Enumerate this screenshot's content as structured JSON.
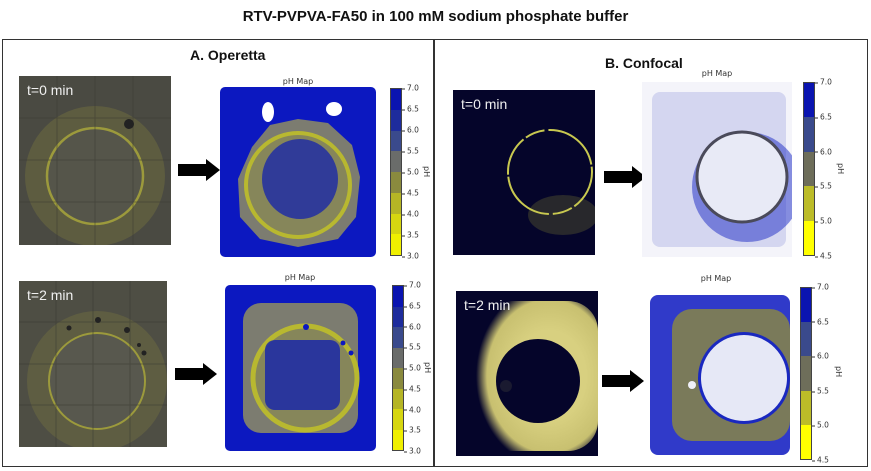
{
  "title": "RTV-PVPVA-FA50 in 100 mM sodium phosphate buffer",
  "panels": {
    "operetta": {
      "title": "A. Operetta",
      "rows": [
        {
          "time_label": "t=0 min",
          "map_title": "pH Map"
        },
        {
          "time_label": "t=2 min",
          "map_title": "pH Map"
        }
      ],
      "colorbar": {
        "label": "pH",
        "ticks": [
          "7.0",
          "6.5",
          "6.0",
          "5.5",
          "5.0",
          "4.5",
          "4.0",
          "3.5",
          "3.0"
        ],
        "range": [
          3.0,
          7.0
        ],
        "colors": [
          "#0a14b0",
          "#1e2c9c",
          "#3a4a8c",
          "#6a6c6a",
          "#8a8a3e",
          "#b5b525",
          "#d6d610",
          "#f0f000"
        ]
      }
    },
    "confocal": {
      "title": "B. Confocal",
      "rows": [
        {
          "time_label": "t=0 min",
          "map_title": "pH Map"
        },
        {
          "time_label": "t=2 min",
          "map_title": "pH Map"
        }
      ],
      "colorbar": {
        "label": "pH",
        "ticks": [
          "7.0",
          "6.5",
          "6.0",
          "5.5",
          "5.0",
          "4.5"
        ],
        "range": [
          4.5,
          7.0
        ],
        "colors": [
          "#0a14b0",
          "#3a4a8c",
          "#6e6e5a",
          "#bcbc28",
          "#ffff00"
        ]
      }
    }
  }
}
